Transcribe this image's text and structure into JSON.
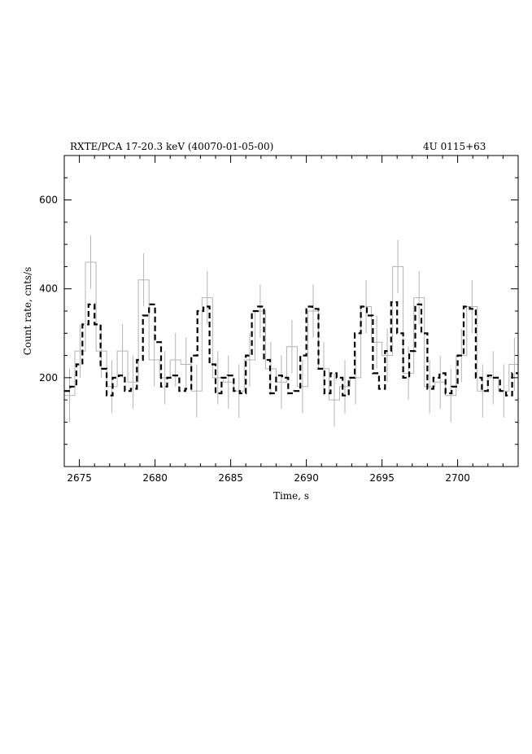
{
  "chart_data": {
    "type": "line",
    "title_left": "RXTE/PCA 17-20.3 keV (40070-01-05-00)",
    "title_right": "4U 0115+63",
    "xlabel": "Time, s",
    "ylabel": "Count rate, cnts/s",
    "xlim": [
      2674,
      2704
    ],
    "ylim": [
      0,
      700
    ],
    "x_ticks": [
      2675,
      2680,
      2685,
      2690,
      2695,
      2700
    ],
    "y_ticks": [
      200,
      400,
      600
    ],
    "grid": false,
    "legend": "none",
    "colors": {
      "data": "#b4b4b4",
      "model": "#000000",
      "axes": "#000000"
    },
    "series": [
      {
        "style": "gray step line with error bars",
        "error_bar_typical": 60,
        "x": [
          2674.0,
          2674.7,
          2675.4,
          2676.1,
          2676.8,
          2677.5,
          2678.2,
          2678.9,
          2679.6,
          2680.3,
          2681.0,
          2681.7,
          2682.4,
          2683.1,
          2683.8,
          2684.5,
          2685.2,
          2685.9,
          2686.6,
          2687.3,
          2688.0,
          2688.7,
          2689.4,
          2690.1,
          2690.8,
          2691.5,
          2692.2,
          2692.9,
          2693.6,
          2694.3,
          2695.0,
          2695.7,
          2696.4,
          2697.1,
          2697.8,
          2698.5,
          2699.2,
          2699.9,
          2700.6,
          2701.3,
          2702.0,
          2702.7,
          2703.4
        ],
        "y": [
          160,
          260,
          460,
          260,
          180,
          260,
          190,
          420,
          240,
          200,
          240,
          230,
          170,
          380,
          200,
          190,
          170,
          240,
          350,
          220,
          190,
          270,
          180,
          350,
          220,
          150,
          180,
          200,
          360,
          280,
          250,
          450,
          210,
          380,
          180,
          190,
          160,
          250,
          360,
          170,
          200,
          170,
          230
        ]
      },
      {
        "style": "black dashed step model",
        "x": [
          2674.0,
          2674.4,
          2674.8,
          2675.2,
          2675.6,
          2676.0,
          2676.4,
          2676.8,
          2677.2,
          2677.6,
          2678.0,
          2678.4,
          2678.8,
          2679.2,
          2679.6,
          2680.0,
          2680.4,
          2680.8,
          2681.2,
          2681.6,
          2682.0,
          2682.4,
          2682.8,
          2683.2,
          2683.6,
          2684.0,
          2684.4,
          2684.8,
          2685.2,
          2685.6,
          2686.0,
          2686.4,
          2686.8,
          2687.2,
          2687.6,
          2688.0,
          2688.4,
          2688.8,
          2689.2,
          2689.6,
          2690.0,
          2690.4,
          2690.8,
          2691.2,
          2691.6,
          2692.0,
          2692.4,
          2692.8,
          2693.2,
          2693.6,
          2694.0,
          2694.4,
          2694.8,
          2695.2,
          2695.6,
          2696.0,
          2696.4,
          2696.8,
          2697.2,
          2697.6,
          2698.0,
          2698.4,
          2698.8,
          2699.2,
          2699.6,
          2700.0,
          2700.4,
          2700.8,
          2701.2,
          2701.6,
          2702.0,
          2702.4,
          2702.8,
          2703.2,
          2703.6
        ],
        "y": [
          170,
          180,
          230,
          320,
          365,
          320,
          220,
          160,
          200,
          205,
          170,
          175,
          240,
          340,
          365,
          280,
          180,
          200,
          205,
          170,
          175,
          250,
          350,
          360,
          230,
          165,
          200,
          205,
          170,
          165,
          250,
          350,
          360,
          240,
          165,
          205,
          200,
          165,
          170,
          250,
          360,
          355,
          220,
          165,
          210,
          200,
          160,
          200,
          300,
          360,
          340,
          210,
          175,
          260,
          370,
          300,
          200,
          260,
          365,
          300,
          175,
          200,
          210,
          165,
          180,
          250,
          360,
          355,
          200,
          170,
          205,
          200,
          170,
          160,
          210
        ]
      }
    ]
  }
}
